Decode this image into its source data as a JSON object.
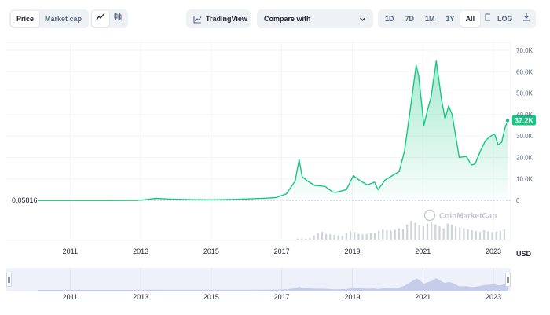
{
  "toolbar": {
    "tabs": [
      {
        "label": "Price",
        "active": true
      },
      {
        "label": "Market cap",
        "active": false
      }
    ],
    "chart_types": [
      {
        "icon": "line-chart-icon",
        "active": true
      },
      {
        "icon": "candlestick-icon",
        "active": false
      }
    ],
    "tradingview_label": "TradingView",
    "compare_label": "Compare with",
    "ranges": [
      {
        "label": "1D",
        "active": false
      },
      {
        "label": "7D",
        "active": false
      },
      {
        "label": "1M",
        "active": false
      },
      {
        "label": "1Y",
        "active": false
      },
      {
        "label": "All",
        "active": true
      }
    ],
    "log_label": "LOG"
  },
  "colors": {
    "line_up": "#16c784",
    "line_down": "#ea3943",
    "badge": "#16c784",
    "volume": "#cfd3da"
  },
  "watermark": "CoinMarketCap",
  "currency": "USD",
  "chart_data": {
    "type": "area",
    "start_label": "0.05816",
    "current_label": "37.2K",
    "y_ticks": [
      "70.0K",
      "60.0K",
      "50.0K",
      "40.0K",
      "30.0K",
      "20.0K",
      "10.0K",
      "0"
    ],
    "ylim": [
      0,
      70000
    ],
    "x_ticks": [
      "2011",
      "2013",
      "2015",
      "2017",
      "2019",
      "2021",
      "2023"
    ],
    "series": [
      {
        "x": [
          2010.55,
          2011.5,
          2012.5,
          2013.5,
          2013.9,
          2014.3,
          2015.0,
          2015.5,
          2016.0,
          2016.5,
          2017.0,
          2017.3,
          2017.6,
          2017.85,
          2017.96,
          2018.05,
          2018.2,
          2018.4,
          2018.7,
          2018.9,
          2019.0,
          2019.3,
          2019.5,
          2019.7,
          2019.9,
          2020.1,
          2020.2,
          2020.4,
          2020.6,
          2020.8,
          2020.95,
          2021.05,
          2021.15,
          2021.28,
          2021.35,
          2021.5,
          2021.6,
          2021.7,
          2021.85,
          2022.0,
          2022.1,
          2022.2,
          2022.3,
          2022.4,
          2022.5,
          2022.7,
          2022.85,
          2022.95,
          2023.1,
          2023.25,
          2023.4,
          2023.5,
          2023.6,
          2023.7,
          2023.8,
          2023.87
        ],
        "y": [
          0.06,
          1,
          10,
          120,
          900,
          600,
          300,
          250,
          420,
          650,
          1000,
          1300,
          3000,
          9000,
          19000,
          11000,
          9000,
          7000,
          6500,
          4000,
          3700,
          5000,
          11500,
          9000,
          7200,
          8500,
          5000,
          9500,
          11500,
          13500,
          23000,
          35000,
          47000,
          63000,
          58000,
          35000,
          42000,
          48000,
          65000,
          47000,
          38000,
          44000,
          40000,
          30000,
          20000,
          20500,
          16500,
          17000,
          23000,
          28000,
          30000,
          31000,
          26000,
          27000,
          34000,
          37200
        ]
      }
    ],
    "volume": [
      0,
      0,
      0,
      0,
      0,
      0,
      0,
      0,
      0,
      0,
      0,
      0,
      0,
      0,
      0,
      0,
      0,
      0,
      0,
      0,
      0,
      0,
      0,
      0,
      0,
      0,
      0,
      0,
      0,
      0,
      0,
      0,
      0,
      0,
      0,
      0,
      0,
      0,
      0,
      0,
      0,
      0,
      0,
      0,
      0,
      0,
      0,
      0,
      0,
      0,
      0,
      0,
      0,
      0,
      0,
      0,
      0,
      0,
      0,
      0,
      0,
      0,
      0,
      0,
      0.05,
      0.06,
      0.05,
      0.08,
      0.22,
      0.35,
      0.42,
      0.3,
      0.28,
      0.25,
      0.22,
      0.2,
      0.35,
      0.45,
      0.4,
      0.3,
      0.28,
      0.3,
      0.38,
      0.35,
      0.45,
      0.55,
      0.5,
      0.48,
      0.52,
      0.6,
      0.55,
      0.8,
      1.0,
      0.9,
      0.75,
      0.7,
      0.85,
      0.95,
      0.8,
      0.7,
      0.6,
      0.85,
      0.8,
      0.7,
      0.65,
      0.6,
      0.55,
      0.5,
      0.45,
      0.4,
      0.5,
      0.45,
      0.4,
      0.42,
      0.48,
      0.55
    ]
  }
}
